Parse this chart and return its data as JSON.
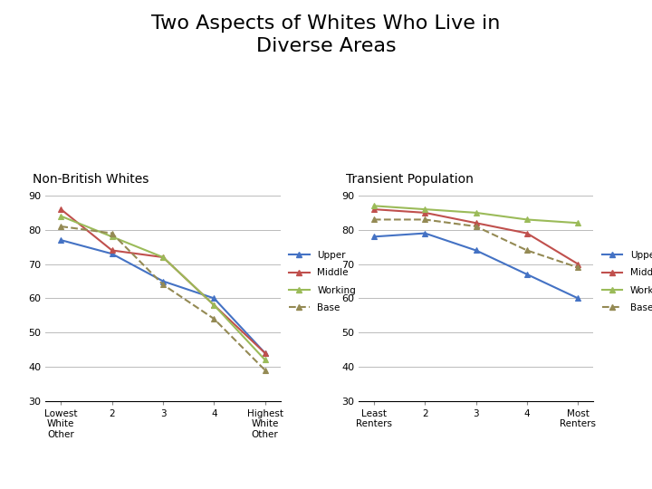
{
  "title": "Two Aspects of Whites Who Live in\nDiverse Areas",
  "title_fontsize": 16,
  "subtitle1": "Non-British Whites",
  "subtitle2": "Transient Population",
  "subtitle_fontsize": 10,
  "background_color": "#ffffff",
  "left_xtick_labels": [
    "Lowest\nWhite\nOther",
    "2",
    "3",
    "4",
    "Highest\nWhite\nOther"
  ],
  "right_xtick_labels": [
    "Least\nRenters",
    "2",
    "3",
    "4",
    "Most\nRenters"
  ],
  "ylim": [
    30,
    90
  ],
  "yticks": [
    30,
    40,
    50,
    60,
    70,
    80,
    90
  ],
  "left_upper": [
    77,
    73,
    65,
    60,
    44
  ],
  "left_middle": [
    86,
    74,
    72,
    58,
    44
  ],
  "left_working": [
    84,
    78,
    72,
    58,
    42
  ],
  "left_base": [
    81,
    79,
    64,
    54,
    39
  ],
  "right_upper": [
    78,
    79,
    74,
    67,
    60
  ],
  "right_middle": [
    86,
    85,
    82,
    79,
    70
  ],
  "right_working": [
    87,
    86,
    85,
    83,
    82
  ],
  "right_base": [
    83,
    83,
    81,
    74,
    69
  ],
  "color_upper": "#4472c4",
  "color_middle": "#c0504d",
  "color_working": "#9bbb59",
  "color_base": "#948a54",
  "legend_labels": [
    "Upper",
    "Middle",
    "Working",
    "Base"
  ]
}
